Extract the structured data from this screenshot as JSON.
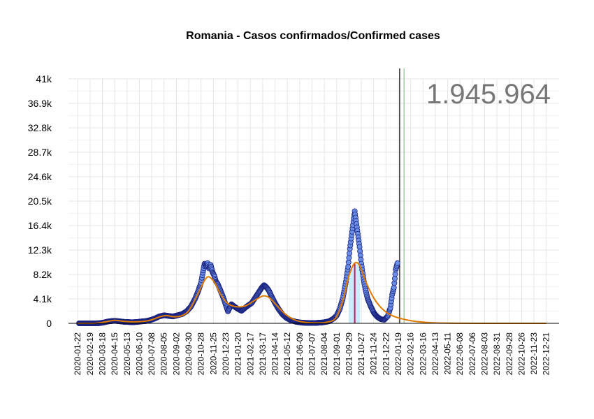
{
  "chart_data": {
    "type": "scatter",
    "title": "Romania - Casos confirmados/Confirmed cases",
    "total_label": "1.945.964",
    "xlabel": "",
    "ylabel": "",
    "x_range": [
      "2020-01-22",
      "2022-12-31"
    ],
    "ylim": [
      0,
      41000
    ],
    "y_ticks": [
      {
        "value": 0,
        "label": "0"
      },
      {
        "value": 4100,
        "label": "4.1k"
      },
      {
        "value": 8200,
        "label": "8.2k"
      },
      {
        "value": 12300,
        "label": "12.3k"
      },
      {
        "value": 16400,
        "label": "16.4k"
      },
      {
        "value": 20500,
        "label": "20.5k"
      },
      {
        "value": 24600,
        "label": "24.6k"
      },
      {
        "value": 28700,
        "label": "28.7k"
      },
      {
        "value": 32800,
        "label": "32.8k"
      },
      {
        "value": 36900,
        "label": "36.9k"
      },
      {
        "value": 41000,
        "label": "41k"
      }
    ],
    "x_ticks": [
      "2020-01-22",
      "2020-02-19",
      "2020-03-18",
      "2020-04-15",
      "2020-05-13",
      "2020-06-10",
      "2020-07-08",
      "2020-08-05",
      "2020-09-02",
      "2020-09-30",
      "2020-10-28",
      "2020-11-25",
      "2020-12-23",
      "2021-01-20",
      "2021-02-17",
      "2021-03-17",
      "2021-04-14",
      "2021-05-12",
      "2021-06-09",
      "2021-07-07",
      "2021-08-04",
      "2021-09-01",
      "2021-09-29",
      "2021-10-27",
      "2021-11-24",
      "2021-12-22",
      "2022-01-19",
      "2022-02-16",
      "2022-03-16",
      "2022-04-13",
      "2022-05-11",
      "2022-06-08",
      "2022-07-06",
      "2022-08-03",
      "2022-08-31",
      "2022-09-28",
      "2022-10-26",
      "2022-11-23",
      "2022-12-21"
    ],
    "grid": true,
    "series": [
      {
        "kind": "points",
        "color": "#6b8ee6",
        "stroke": "#1a237e",
        "points": [
          [
            "2020-01-25",
            0
          ],
          [
            "2020-02-10",
            0
          ],
          [
            "2020-02-28",
            0
          ],
          [
            "2020-03-10",
            20
          ],
          [
            "2020-03-20",
            120
          ],
          [
            "2020-03-30",
            300
          ],
          [
            "2020-04-08",
            380
          ],
          [
            "2020-04-15",
            420
          ],
          [
            "2020-04-25",
            350
          ],
          [
            "2020-05-05",
            260
          ],
          [
            "2020-05-15",
            220
          ],
          [
            "2020-05-25",
            180
          ],
          [
            "2020-06-05",
            230
          ],
          [
            "2020-06-15",
            320
          ],
          [
            "2020-06-25",
            380
          ],
          [
            "2020-07-05",
            550
          ],
          [
            "2020-07-15",
            800
          ],
          [
            "2020-07-25",
            1150
          ],
          [
            "2020-08-05",
            1350
          ],
          [
            "2020-08-15",
            1250
          ],
          [
            "2020-08-25",
            1150
          ],
          [
            "2020-09-05",
            1350
          ],
          [
            "2020-09-15",
            1550
          ],
          [
            "2020-09-25",
            2000
          ],
          [
            "2020-10-05",
            2800
          ],
          [
            "2020-10-15",
            4200
          ],
          [
            "2020-10-22",
            5500
          ],
          [
            "2020-10-28",
            6800
          ],
          [
            "2020-11-01",
            8500
          ],
          [
            "2020-11-05",
            10000
          ],
          [
            "2020-11-08",
            9600
          ],
          [
            "2020-11-12",
            10100
          ],
          [
            "2020-11-15",
            9200
          ],
          [
            "2020-11-19",
            9800
          ],
          [
            "2020-11-23",
            8600
          ],
          [
            "2020-11-27",
            8000
          ],
          [
            "2020-12-01",
            7000
          ],
          [
            "2020-12-05",
            6600
          ],
          [
            "2020-12-10",
            5700
          ],
          [
            "2020-12-15",
            4800
          ],
          [
            "2020-12-20",
            3800
          ],
          [
            "2020-12-28",
            2000
          ],
          [
            "2021-01-05",
            3200
          ],
          [
            "2021-01-12",
            2800
          ],
          [
            "2021-01-20",
            2400
          ],
          [
            "2021-01-28",
            2100
          ],
          [
            "2021-02-05",
            2600
          ],
          [
            "2021-02-12",
            3000
          ],
          [
            "2021-02-20",
            3400
          ],
          [
            "2021-02-28",
            4300
          ],
          [
            "2021-03-08",
            5200
          ],
          [
            "2021-03-15",
            6000
          ],
          [
            "2021-03-20",
            6400
          ],
          [
            "2021-03-25",
            6100
          ],
          [
            "2021-03-31",
            5500
          ],
          [
            "2021-04-07",
            4400
          ],
          [
            "2021-04-14",
            3400
          ],
          [
            "2021-04-22",
            2400
          ],
          [
            "2021-05-01",
            1500
          ],
          [
            "2021-05-10",
            900
          ],
          [
            "2021-05-20",
            500
          ],
          [
            "2021-06-01",
            250
          ],
          [
            "2021-06-15",
            100
          ],
          [
            "2021-07-01",
            60
          ],
          [
            "2021-07-15",
            60
          ],
          [
            "2021-08-01",
            150
          ],
          [
            "2021-08-15",
            350
          ],
          [
            "2021-08-25",
            800
          ],
          [
            "2021-09-01",
            1300
          ],
          [
            "2021-09-08",
            2400
          ],
          [
            "2021-09-15",
            4200
          ],
          [
            "2021-09-22",
            7000
          ],
          [
            "2021-09-27",
            9500
          ],
          [
            "2021-10-01",
            12500
          ],
          [
            "2021-10-05",
            14800
          ],
          [
            "2021-10-08",
            16500
          ],
          [
            "2021-10-12",
            18800
          ],
          [
            "2021-10-15",
            17200
          ],
          [
            "2021-10-19",
            15000
          ],
          [
            "2021-10-23",
            12800
          ],
          [
            "2021-10-27",
            10000
          ],
          [
            "2021-11-01",
            7400
          ],
          [
            "2021-11-05",
            5800
          ],
          [
            "2021-11-10",
            4200
          ],
          [
            "2021-11-17",
            2900
          ],
          [
            "2021-11-25",
            1700
          ],
          [
            "2021-12-02",
            1100
          ],
          [
            "2021-12-10",
            700
          ],
          [
            "2021-12-18",
            600
          ],
          [
            "2021-12-26",
            1200
          ],
          [
            "2022-01-01",
            2600
          ],
          [
            "2022-01-05",
            4800
          ],
          [
            "2022-01-09",
            6000
          ],
          [
            "2022-01-13",
            9000
          ],
          [
            "2022-01-17",
            10100
          ]
        ]
      },
      {
        "kind": "line",
        "color": "#e07b00",
        "points": [
          [
            "2020-01-22",
            0
          ],
          [
            "2020-03-01",
            20
          ],
          [
            "2020-03-25",
            250
          ],
          [
            "2020-04-15",
            500
          ],
          [
            "2020-05-05",
            330
          ],
          [
            "2020-06-01",
            250
          ],
          [
            "2020-07-01",
            450
          ],
          [
            "2020-07-25",
            1050
          ],
          [
            "2020-08-10",
            1300
          ],
          [
            "2020-08-28",
            1100
          ],
          [
            "2020-09-15",
            1300
          ],
          [
            "2020-10-01",
            2200
          ],
          [
            "2020-10-20",
            4800
          ],
          [
            "2020-11-05",
            7200
          ],
          [
            "2020-11-15",
            7800
          ],
          [
            "2020-11-28",
            6800
          ],
          [
            "2020-12-12",
            4800
          ],
          [
            "2020-12-28",
            3300
          ],
          [
            "2021-01-15",
            2800
          ],
          [
            "2021-02-05",
            2900
          ],
          [
            "2021-02-28",
            3900
          ],
          [
            "2021-03-18",
            4600
          ],
          [
            "2021-04-01",
            4300
          ],
          [
            "2021-04-18",
            3000
          ],
          [
            "2021-05-08",
            1500
          ],
          [
            "2021-05-28",
            600
          ],
          [
            "2021-06-20",
            180
          ],
          [
            "2021-07-20",
            80
          ],
          [
            "2021-08-10",
            200
          ],
          [
            "2021-08-30",
            900
          ],
          [
            "2021-09-15",
            3800
          ],
          [
            "2021-09-29",
            8000
          ],
          [
            "2021-10-12",
            10100
          ],
          [
            "2021-10-24",
            9600
          ],
          [
            "2021-11-05",
            7200
          ],
          [
            "2021-11-20",
            4800
          ],
          [
            "2021-12-05",
            3100
          ],
          [
            "2021-12-20",
            2000
          ],
          [
            "2022-01-05",
            1300
          ],
          [
            "2022-01-25",
            800
          ],
          [
            "2022-02-20",
            400
          ],
          [
            "2022-03-20",
            180
          ],
          [
            "2022-04-20",
            60
          ],
          [
            "2022-06-01",
            15
          ],
          [
            "2022-08-01",
            3
          ],
          [
            "2022-12-21",
            0
          ]
        ]
      }
    ],
    "vlines": [
      {
        "date": "2021-10-12",
        "value": 10100,
        "color": "#c2185b"
      },
      {
        "date": "2022-01-22",
        "color": "#000000",
        "full": true
      },
      {
        "date": "2022-02-01",
        "color": "#90c090",
        "full": true
      }
    ],
    "area_fill": {
      "from": "2021-09-29",
      "to": "2021-10-27",
      "color": "#b3e5fc"
    }
  }
}
